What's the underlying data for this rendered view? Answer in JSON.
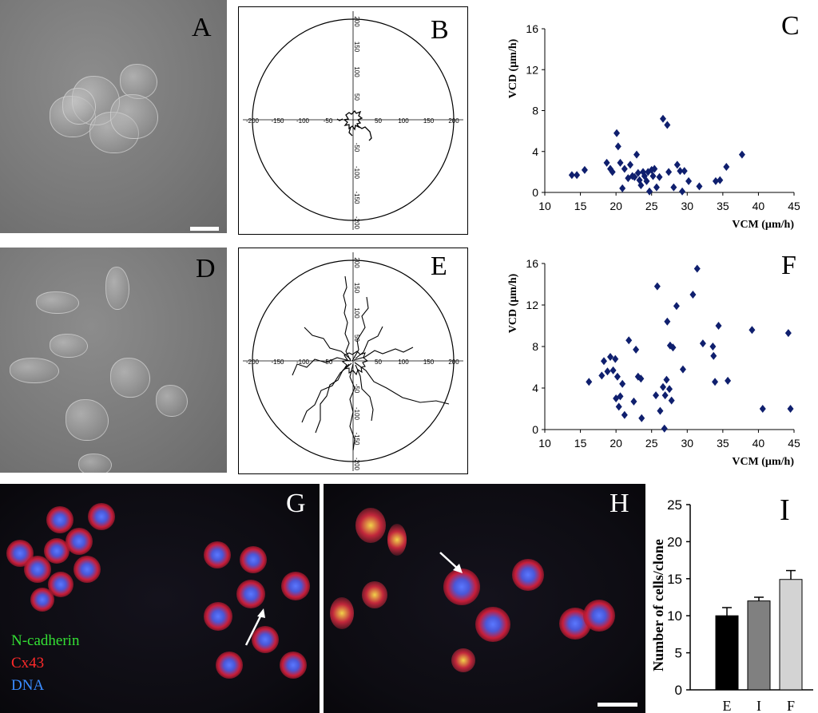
{
  "panels": {
    "A": {
      "letter": "A"
    },
    "B": {
      "letter": "B",
      "ticks": [
        "-200",
        "-150",
        "-100",
        "-50",
        "50",
        "100",
        "150",
        "200"
      ]
    },
    "C": {
      "letter": "C"
    },
    "D": {
      "letter": "D"
    },
    "E": {
      "letter": "E",
      "ticks": [
        "-200",
        "-150",
        "-100",
        "-50",
        "50",
        "100",
        "150",
        "200"
      ]
    },
    "F": {
      "letter": "F"
    },
    "G": {
      "letter": "G",
      "legend": [
        "N-cadherin",
        "Cx43",
        "DNA"
      ]
    },
    "H": {
      "letter": "H"
    },
    "I": {
      "letter": "I"
    }
  },
  "legend_colors": {
    "N-cadherin": "#34e034",
    "Cx43": "#ff2a2a",
    "DNA": "#3a8cff"
  },
  "marker_color": "#0f1f6e",
  "chart_data": [
    {
      "panel": "C",
      "type": "scatter",
      "xlabel": "VCM (µm/h)",
      "ylabel": "VCD  (µm/h)",
      "xlim": [
        10,
        45
      ],
      "ylim": [
        0,
        16
      ],
      "xticks": [
        10,
        15,
        20,
        25,
        30,
        35,
        40,
        45
      ],
      "yticks": [
        0,
        4,
        8,
        12,
        16
      ],
      "points": [
        [
          13.8,
          1.7
        ],
        [
          14.5,
          1.7
        ],
        [
          15.6,
          2.2
        ],
        [
          18.7,
          2.9
        ],
        [
          19.2,
          2.3
        ],
        [
          19.5,
          2.0
        ],
        [
          20.1,
          5.8
        ],
        [
          20.3,
          4.5
        ],
        [
          20.6,
          2.9
        ],
        [
          20.9,
          0.4
        ],
        [
          21.2,
          2.3
        ],
        [
          21.7,
          1.4
        ],
        [
          22.0,
          2.7
        ],
        [
          22.3,
          1.6
        ],
        [
          22.6,
          1.5
        ],
        [
          22.9,
          3.7
        ],
        [
          23.1,
          1.9
        ],
        [
          23.3,
          1.2
        ],
        [
          23.5,
          0.7
        ],
        [
          23.8,
          2.0
        ],
        [
          24.0,
          1.6
        ],
        [
          24.3,
          1.1
        ],
        [
          24.5,
          2.0
        ],
        [
          24.7,
          0.1
        ],
        [
          25.0,
          2.2
        ],
        [
          25.2,
          1.6
        ],
        [
          25.4,
          2.3
        ],
        [
          25.7,
          0.5
        ],
        [
          26.1,
          1.5
        ],
        [
          26.6,
          7.2
        ],
        [
          27.2,
          6.6
        ],
        [
          27.4,
          2.0
        ],
        [
          28.1,
          0.5
        ],
        [
          28.6,
          2.7
        ],
        [
          29.0,
          2.1
        ],
        [
          29.3,
          0.1
        ],
        [
          29.6,
          2.1
        ],
        [
          30.2,
          1.1
        ],
        [
          31.7,
          0.6
        ],
        [
          34.0,
          1.1
        ],
        [
          34.6,
          1.2
        ],
        [
          35.5,
          2.5
        ],
        [
          37.7,
          3.7
        ]
      ]
    },
    {
      "panel": "F",
      "type": "scatter",
      "xlabel": "VCM (µm/h)",
      "ylabel": "VCD  (µm/h)",
      "xlim": [
        10,
        45
      ],
      "ylim": [
        0,
        16
      ],
      "xticks": [
        10,
        15,
        20,
        25,
        30,
        35,
        40,
        45
      ],
      "yticks": [
        0,
        4,
        8,
        12,
        16
      ],
      "points": [
        [
          16.2,
          4.6
        ],
        [
          18.0,
          5.2
        ],
        [
          18.3,
          6.6
        ],
        [
          18.8,
          5.6
        ],
        [
          19.2,
          7.0
        ],
        [
          19.6,
          5.7
        ],
        [
          19.9,
          6.8
        ],
        [
          20.0,
          3.0
        ],
        [
          20.2,
          5.1
        ],
        [
          20.4,
          2.2
        ],
        [
          20.6,
          3.2
        ],
        [
          20.9,
          4.4
        ],
        [
          21.2,
          1.4
        ],
        [
          21.8,
          8.6
        ],
        [
          22.5,
          2.7
        ],
        [
          22.8,
          7.7
        ],
        [
          23.1,
          5.1
        ],
        [
          23.5,
          4.9
        ],
        [
          23.6,
          1.1
        ],
        [
          25.6,
          3.3
        ],
        [
          25.8,
          13.8
        ],
        [
          26.2,
          1.8
        ],
        [
          26.6,
          4.1
        ],
        [
          26.8,
          0.1
        ],
        [
          26.9,
          3.3
        ],
        [
          27.1,
          4.8
        ],
        [
          27.2,
          10.4
        ],
        [
          27.5,
          3.9
        ],
        [
          27.6,
          8.1
        ],
        [
          27.8,
          2.8
        ],
        [
          28.0,
          7.9
        ],
        [
          28.5,
          11.9
        ],
        [
          29.4,
          5.8
        ],
        [
          30.8,
          13.0
        ],
        [
          31.4,
          15.5
        ],
        [
          32.2,
          8.3
        ],
        [
          33.6,
          8.0
        ],
        [
          33.7,
          7.1
        ],
        [
          33.9,
          4.6
        ],
        [
          34.4,
          10.0
        ],
        [
          35.7,
          4.7
        ],
        [
          39.1,
          9.6
        ],
        [
          40.6,
          2.0
        ],
        [
          44.2,
          9.3
        ],
        [
          44.5,
          2.0
        ]
      ]
    },
    {
      "panel": "I",
      "type": "bar",
      "ylabel": "Number of cells/clone",
      "categories": [
        "E",
        "I",
        "F"
      ],
      "values": [
        10.0,
        12.0,
        14.9
      ],
      "errors": [
        1.1,
        0.5,
        1.2
      ],
      "colors": [
        "#000000",
        "#808080",
        "#d3d3d3"
      ],
      "ylim": [
        0,
        25
      ],
      "yticks": [
        0,
        5,
        10,
        15,
        20,
        25
      ]
    }
  ]
}
